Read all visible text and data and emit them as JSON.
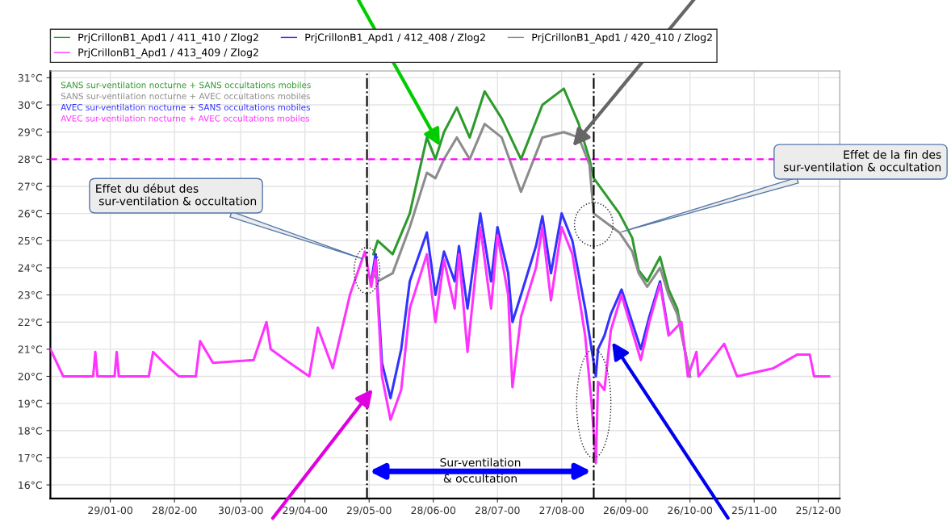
{
  "chart_data": {
    "type": "line",
    "annotations": [
      "SANS sur-ventilation nocturne + SANS occultations mobiles",
      "SANS sur-ventilation nocturne + AVEC occultations mobiles",
      "AVEC sur-ventilation nocturne + SANS occultations mobiles",
      "AVEC sur-ventilation nocturne + AVEC occultations mobiles",
      {
        "text": "Effet du début des\n sur-ventilation & occultation",
        "x": "2000-05-27",
        "y": 24.3
      },
      {
        "text": "Effet de la fin des\n sur-ventilation & occultation",
        "x": "2000-09-23",
        "y": 25.3
      },
      "Sur-ventilation\n& occultation"
    ],
    "x": [
      "2000-01-01",
      "2000-01-07",
      "2000-01-21",
      "2000-01-22",
      "2000-01-23",
      "2000-01-31",
      "2000-02-01",
      "2000-02-02",
      "2000-02-16",
      "2000-02-18",
      "2000-02-23",
      "2000-03-01",
      "2000-03-09",
      "2000-03-11",
      "2000-03-17",
      "2000-04-05",
      "2000-04-11",
      "2000-04-13",
      "2000-04-20",
      "2000-05-01",
      "2000-05-05",
      "2000-05-12",
      "2000-05-20",
      "2000-05-27",
      "2000-05-30",
      "2000-06-01",
      "2000-06-04",
      "2000-06-08",
      "2000-06-13",
      "2000-06-17",
      "2000-06-25",
      "2000-06-29",
      "2000-07-03",
      "2000-07-08",
      "2000-07-10",
      "2000-07-14",
      "2000-07-20",
      "2000-07-25",
      "2000-07-28",
      "2000-08-02",
      "2000-08-04",
      "2000-08-08",
      "2000-08-15",
      "2000-08-18",
      "2000-08-22",
      "2000-08-27",
      "2000-09-01",
      "2000-09-07",
      "2000-09-10",
      "2000-09-12",
      "2000-09-13",
      "2000-09-16",
      "2000-09-19",
      "2000-09-24",
      "2000-10-03",
      "2000-10-07",
      "2000-10-12",
      "2000-10-16",
      "2000-10-22",
      "2000-10-25",
      "2000-10-29",
      "2000-10-30",
      "2000-11-11",
      "2000-11-17",
      "2000-12-04",
      "2000-12-15",
      "2000-12-21",
      "2000-12-23",
      "2000-12-30"
    ],
    "series": [
      {
        "name": "PrjCrillonB1_Apd1 / 411_410 / Zlog2",
        "color": "#2e9a2e",
        "x": [
          "2000-05-31",
          "2000-06-02",
          "2000-06-09",
          "2000-06-17",
          "2000-06-25",
          "2000-06-29",
          "2000-07-03",
          "2000-07-09",
          "2000-07-15",
          "2000-07-22",
          "2000-07-30",
          "2000-08-08",
          "2000-08-18",
          "2000-08-28",
          "2000-09-04",
          "2000-09-09",
          "2000-09-11",
          "2000-09-23",
          "2000-09-29",
          "2000-10-02",
          "2000-10-06",
          "2000-10-12",
          "2000-10-16",
          "2000-10-20",
          "2000-10-24",
          "2000-10-26"
        ],
        "values": [
          24.5,
          25.0,
          24.5,
          26.0,
          28.8,
          28.0,
          29.0,
          29.9,
          28.8,
          30.5,
          29.5,
          28.0,
          30.0,
          30.6,
          29.3,
          28.0,
          27.3,
          26.0,
          25.1,
          23.9,
          23.5,
          24.4,
          23.2,
          22.5,
          20.8,
          20.0
        ]
      },
      {
        "name": "PrjCrillonB1_Apd1 / 420_410 / Zlog2",
        "color": "#8c8c8c",
        "x": [
          "2000-05-31",
          "2000-06-02",
          "2000-06-09",
          "2000-06-17",
          "2000-06-25",
          "2000-06-29",
          "2000-07-03",
          "2000-07-09",
          "2000-07-15",
          "2000-07-22",
          "2000-07-30",
          "2000-08-08",
          "2000-08-18",
          "2000-08-28",
          "2000-09-04",
          "2000-09-09",
          "2000-09-11",
          "2000-09-23",
          "2000-09-29",
          "2000-10-02",
          "2000-10-06",
          "2000-10-12",
          "2000-10-16",
          "2000-10-20",
          "2000-10-24",
          "2000-10-26"
        ],
        "values": [
          23.8,
          23.5,
          23.8,
          25.5,
          27.5,
          27.3,
          28.0,
          28.8,
          28.0,
          29.3,
          28.8,
          26.8,
          28.8,
          29.0,
          28.8,
          27.8,
          26.0,
          25.3,
          24.6,
          23.8,
          23.3,
          24.0,
          23.0,
          22.3,
          20.8,
          20.0
        ]
      },
      {
        "name": "PrjCrillonB1_Apd1 / 412_408 / Zlog2",
        "color": "#3333ff",
        "values": [
          null,
          null,
          null,
          null,
          null,
          null,
          null,
          null,
          null,
          null,
          null,
          null,
          null,
          null,
          null,
          null,
          null,
          null,
          null,
          null,
          null,
          null,
          null,
          null,
          23.5,
          24.5,
          20.5,
          19.2,
          21.0,
          23.5,
          25.3,
          23.0,
          24.6,
          23.5,
          24.8,
          22.5,
          26.0,
          23.5,
          25.5,
          23.8,
          22.0,
          23.0,
          24.8,
          25.9,
          23.8,
          26.0,
          25.0,
          22.5,
          21.0,
          20.0,
          21.0,
          21.5,
          22.3,
          23.2,
          21.0,
          22.2,
          23.5,
          21.6,
          null,
          null,
          null,
          null,
          null,
          null,
          null,
          null,
          null,
          null,
          null
        ]
      },
      {
        "name": "PrjCrillonB1_Apd1 / 413_409 / Zlog2",
        "color": "#ff33ff",
        "values": [
          21.0,
          20.0,
          20.0,
          20.9,
          20.0,
          20.0,
          20.9,
          20.0,
          20.0,
          20.9,
          20.5,
          20.0,
          20.0,
          21.3,
          20.5,
          20.6,
          22.0,
          21.0,
          20.6,
          20.0,
          21.8,
          20.3,
          23.0,
          24.6,
          23.3,
          24.3,
          20.0,
          18.4,
          19.5,
          22.5,
          24.5,
          22.0,
          24.3,
          22.5,
          24.5,
          20.9,
          25.5,
          22.5,
          25.2,
          23.0,
          19.6,
          22.2,
          24.0,
          25.5,
          22.8,
          25.5,
          24.5,
          21.5,
          19.0,
          16.8,
          19.8,
          19.5,
          21.7,
          23.0,
          20.6,
          22.0,
          23.4,
          21.5,
          22.0,
          20.0,
          20.9,
          20.0,
          21.2,
          20.0,
          20.3,
          20.8,
          20.8,
          20.0,
          20.0
        ]
      }
    ],
    "xlim": [
      "2000-01-01",
      "2001-01-04"
    ],
    "xticks": [
      {
        "value": "2000-01-29",
        "label": "29/01-00"
      },
      {
        "value": "2000-02-28",
        "label": "28/02-00"
      },
      {
        "value": "2000-03-30",
        "label": "30/03-00"
      },
      {
        "value": "2000-04-29",
        "label": "29/04-00"
      },
      {
        "value": "2000-05-29",
        "label": "29/05-00"
      },
      {
        "value": "2000-06-28",
        "label": "28/06-00"
      },
      {
        "value": "2000-07-28",
        "label": "28/07-00"
      },
      {
        "value": "2000-08-27",
        "label": "27/08-00"
      },
      {
        "value": "2000-09-26",
        "label": "26/09-00"
      },
      {
        "value": "2000-10-26",
        "label": "26/10-00"
      },
      {
        "value": "2000-11-25",
        "label": "25/11-00"
      },
      {
        "value": "2000-12-25",
        "label": "25/12-00"
      }
    ],
    "ylim": [
      15.5,
      31.25
    ],
    "yticks": [
      {
        "value": 16,
        "label": "16°C"
      },
      {
        "value": 17,
        "label": "17°C"
      },
      {
        "value": 18,
        "label": "18°C"
      },
      {
        "value": 19,
        "label": "19°C"
      },
      {
        "value": 20,
        "label": "20°C"
      },
      {
        "value": 21,
        "label": "21°C"
      },
      {
        "value": 22,
        "label": "22°C"
      },
      {
        "value": 23,
        "label": "23°C"
      },
      {
        "value": 24,
        "label": "24°C"
      },
      {
        "value": 25,
        "label": "25°C"
      },
      {
        "value": 26,
        "label": "26°C"
      },
      {
        "value": 27,
        "label": "27°C"
      },
      {
        "value": 28,
        "label": "28°C"
      },
      {
        "value": 29,
        "label": "29°C"
      },
      {
        "value": 30,
        "label": "30°C"
      },
      {
        "value": 31,
        "label": "31°C"
      }
    ],
    "ref_lines": [
      {
        "axis": "y",
        "value": 28,
        "color": "#ff00ff",
        "line_style": "dashed"
      },
      {
        "axis": "x",
        "value": "2000-05-28",
        "color": "#000000",
        "line_style": "dashdot"
      },
      {
        "axis": "x",
        "value": "2000-09-11",
        "color": "#000000",
        "line_style": "dashdot"
      }
    ],
    "grid": true,
    "legend": "top",
    "marker": "none",
    "line_style": "solid"
  }
}
